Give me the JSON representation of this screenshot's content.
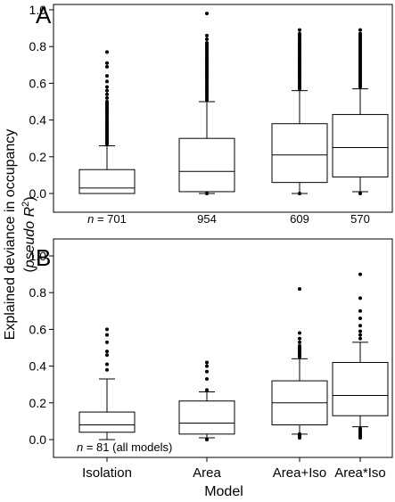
{
  "chart_data": {
    "type": "box",
    "xlabel": "Model",
    "ylabel_line1": "Explained deviance in occupancy",
    "ylabel_line2_open": "(",
    "ylabel_line2_italic": "pseudo R",
    "ylabel_line2_sup": "2",
    "ylabel_line2_close": ")",
    "categories": [
      "Isolation",
      "Area",
      "Area+Iso",
      "Area*Iso"
    ],
    "ylim": [
      0.0,
      1.0
    ],
    "yticks": [
      "0.0",
      "0.2",
      "0.4",
      "0.6",
      "0.8",
      "1.0"
    ],
    "panels": [
      {
        "label": "A",
        "n_prefix": "n",
        "n_labels": [
          "= 701",
          "954",
          "609",
          "570"
        ],
        "boxes": [
          {
            "q1": 0.0,
            "median": 0.03,
            "q3": 0.13,
            "whisker_low": 0.0,
            "whisker_high": 0.26,
            "outliers": [
              0.27,
              0.28,
              0.29,
              0.3,
              0.31,
              0.32,
              0.33,
              0.34,
              0.35,
              0.36,
              0.37,
              0.38,
              0.39,
              0.4,
              0.41,
              0.42,
              0.43,
              0.44,
              0.45,
              0.46,
              0.47,
              0.48,
              0.49,
              0.5,
              0.52,
              0.54,
              0.56,
              0.58,
              0.61,
              0.64,
              0.69,
              0.71,
              0.77
            ]
          },
          {
            "q1": 0.01,
            "median": 0.12,
            "q3": 0.3,
            "whisker_low": 0.0,
            "whisker_high": 0.5,
            "outliers": [
              0.0,
              0.51,
              0.52,
              0.53,
              0.54,
              0.55,
              0.56,
              0.57,
              0.58,
              0.59,
              0.6,
              0.61,
              0.62,
              0.63,
              0.64,
              0.65,
              0.66,
              0.67,
              0.68,
              0.69,
              0.7,
              0.71,
              0.72,
              0.73,
              0.74,
              0.75,
              0.76,
              0.77,
              0.78,
              0.79,
              0.8,
              0.81,
              0.82,
              0.84,
              0.86,
              0.98
            ]
          },
          {
            "q1": 0.06,
            "median": 0.21,
            "q3": 0.38,
            "whisker_low": 0.0,
            "whisker_high": 0.56,
            "outliers": [
              0.0,
              0.57,
              0.58,
              0.59,
              0.6,
              0.61,
              0.62,
              0.63,
              0.64,
              0.65,
              0.66,
              0.67,
              0.68,
              0.69,
              0.7,
              0.71,
              0.72,
              0.73,
              0.74,
              0.75,
              0.76,
              0.77,
              0.78,
              0.79,
              0.8,
              0.81,
              0.82,
              0.83,
              0.84,
              0.85,
              0.86,
              0.87,
              0.89
            ]
          },
          {
            "q1": 0.09,
            "median": 0.25,
            "q3": 0.43,
            "whisker_low": 0.01,
            "whisker_high": 0.57,
            "outliers": [
              0.0,
              0.58,
              0.59,
              0.6,
              0.61,
              0.62,
              0.63,
              0.64,
              0.65,
              0.66,
              0.67,
              0.68,
              0.69,
              0.7,
              0.71,
              0.72,
              0.73,
              0.74,
              0.75,
              0.76,
              0.77,
              0.78,
              0.79,
              0.8,
              0.81,
              0.82,
              0.83,
              0.84,
              0.85,
              0.86,
              0.87,
              0.89
            ]
          }
        ]
      },
      {
        "label": "B",
        "n_prefix": "n",
        "n_labels": [
          "= 81 (all models)"
        ],
        "boxes": [
          {
            "q1": 0.04,
            "median": 0.08,
            "q3": 0.15,
            "whisker_low": 0.0,
            "whisker_high": 0.33,
            "outliers": [
              0.38,
              0.41,
              0.46,
              0.48,
              0.53,
              0.57,
              0.6
            ]
          },
          {
            "q1": 0.03,
            "median": 0.09,
            "q3": 0.21,
            "whisker_low": 0.01,
            "whisker_high": 0.26,
            "outliers": [
              0.0,
              0.27,
              0.33,
              0.37,
              0.4,
              0.42
            ]
          },
          {
            "q1": 0.08,
            "median": 0.2,
            "q3": 0.32,
            "whisker_low": 0.03,
            "whisker_high": 0.44,
            "outliers": [
              0.01,
              0.02,
              0.03,
              0.45,
              0.46,
              0.47,
              0.48,
              0.49,
              0.5,
              0.51,
              0.53,
              0.55,
              0.58,
              0.82
            ]
          },
          {
            "q1": 0.13,
            "median": 0.24,
            "q3": 0.42,
            "whisker_low": 0.07,
            "whisker_high": 0.53,
            "outliers": [
              0.01,
              0.02,
              0.03,
              0.04,
              0.05,
              0.06,
              0.55,
              0.57,
              0.59,
              0.62,
              0.66,
              0.7,
              0.77,
              0.9
            ]
          }
        ]
      }
    ]
  }
}
